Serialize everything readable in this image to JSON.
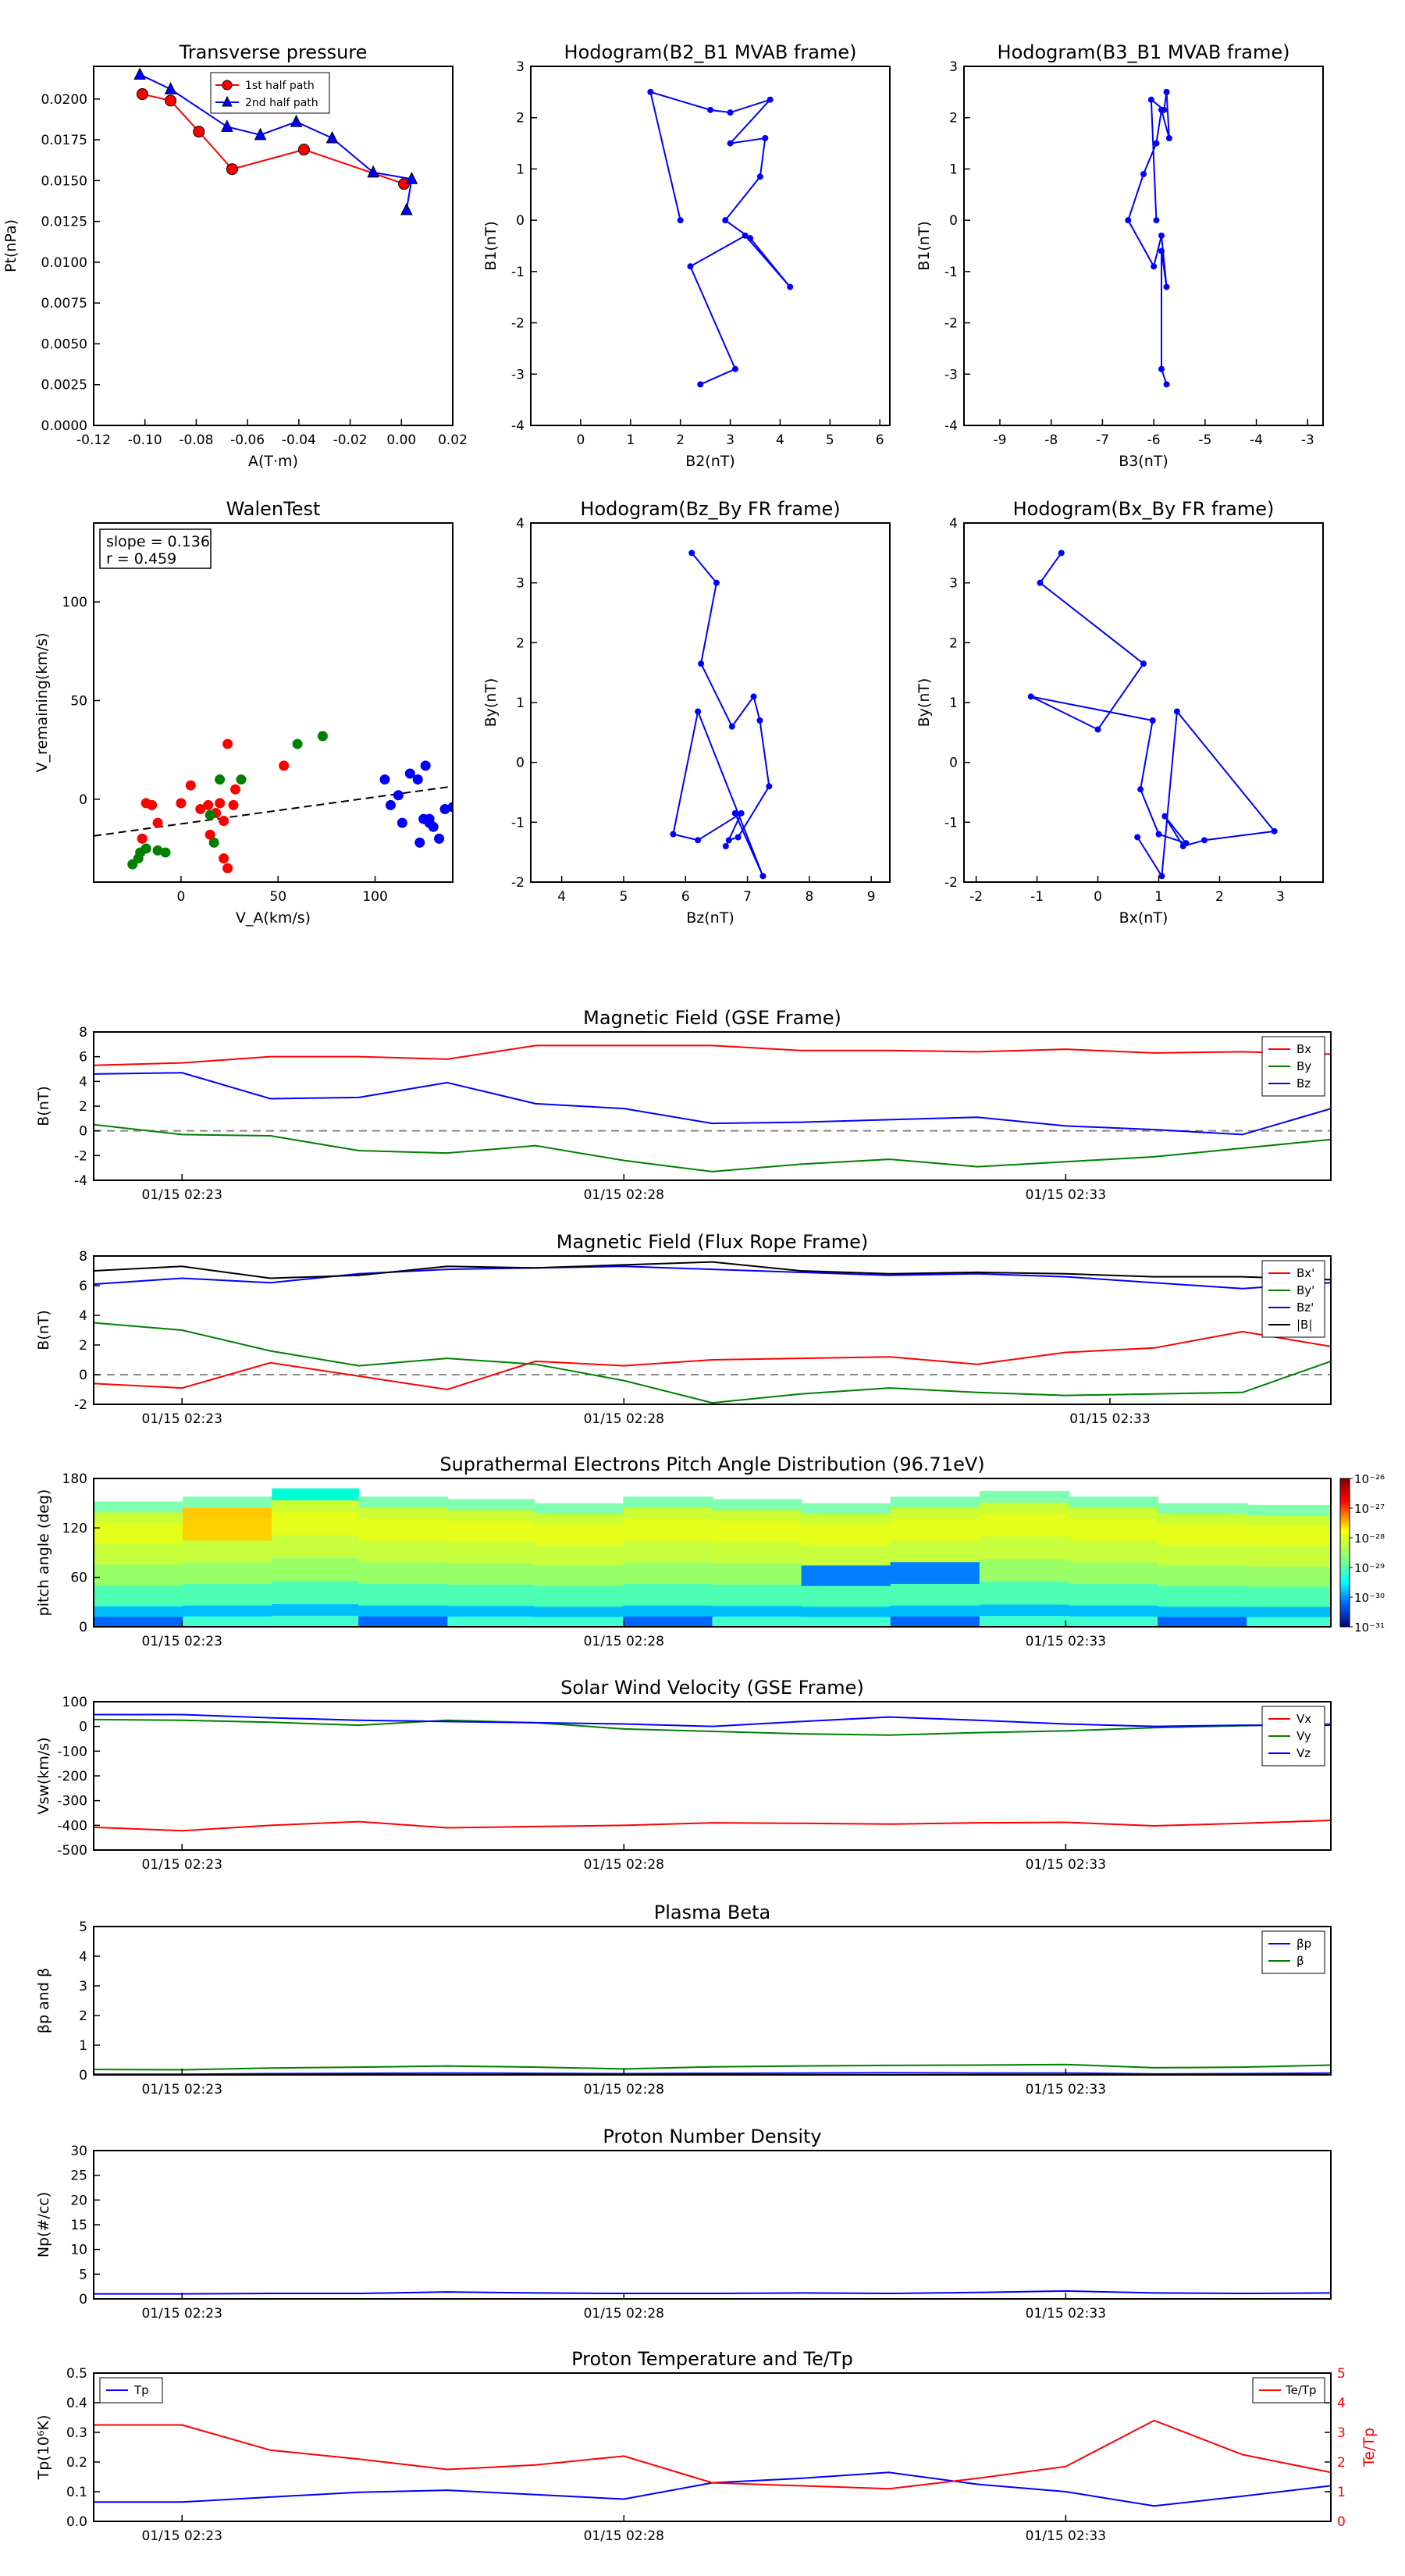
{
  "chart_data": [
    {
      "id": "tp",
      "type": "line",
      "title": "Transverse pressure",
      "xlabel": "A(T·m)",
      "ylabel": "Pt(nPa)",
      "xlim": [
        -0.12,
        0.02
      ],
      "ylim": [
        0.0,
        0.022
      ],
      "xticks": [
        "-0.12",
        "-0.10",
        "-0.08",
        "-0.06",
        "-0.04",
        "-0.02",
        "0.00",
        "0.02"
      ],
      "yticks": [
        "0.0000",
        "0.0025",
        "0.0050",
        "0.0075",
        "0.0100",
        "0.0125",
        "0.0150",
        "0.0175",
        "0.0200"
      ],
      "legend": "top-center",
      "series": [
        {
          "name": "1st half path",
          "marker": "circle",
          "color": "#ff0000",
          "x": [
            -0.101,
            -0.09,
            -0.079,
            -0.066,
            -0.038,
            0.001
          ],
          "y": [
            0.0203,
            0.0199,
            0.018,
            0.0157,
            0.0169,
            0.0148
          ]
        },
        {
          "name": "2nd half path",
          "marker": "triangle",
          "color": "#0000ff",
          "x": [
            -0.102,
            -0.09,
            -0.068,
            -0.055,
            -0.041,
            -0.027,
            -0.011,
            0.004,
            0.002
          ],
          "y": [
            0.0215,
            0.0206,
            0.0183,
            0.0178,
            0.0186,
            0.0176,
            0.0155,
            0.0151,
            0.0132
          ]
        }
      ]
    },
    {
      "id": "h1",
      "type": "line",
      "title": "Hodogram(B2_B1 MVAB frame)",
      "xlabel": "B2(nT)",
      "ylabel": "B1(nT)",
      "xlim": [
        -1,
        6.2
      ],
      "ylim": [
        -4,
        3
      ],
      "xticks": [
        "0",
        "1",
        "2",
        "3",
        "4",
        "5",
        "6"
      ],
      "yticks": [
        "-4",
        "-3",
        "-2",
        "-1",
        "0",
        "1",
        "2",
        "3"
      ],
      "series": [
        {
          "color": "#0000ff",
          "marker": "dot",
          "x": [
            2.0,
            1.4,
            2.6,
            3.0,
            3.8,
            3.0,
            3.7,
            3.6,
            2.9,
            3.4,
            4.2,
            3.3,
            2.2,
            3.1,
            2.4
          ],
          "y": [
            0.0,
            2.5,
            2.15,
            2.1,
            2.35,
            1.5,
            1.6,
            0.85,
            0.0,
            -0.35,
            -1.3,
            -0.3,
            -0.9,
            -2.9,
            -3.2
          ]
        }
      ]
    },
    {
      "id": "h2",
      "type": "line",
      "title": "Hodogram(B3_B1 MVAB frame)",
      "xlabel": "B3(nT)",
      "ylabel": "B1(nT)",
      "xlim": [
        -9.7,
        -2.7
      ],
      "ylim": [
        -4,
        3
      ],
      "xticks": [
        "-9",
        "-8",
        "-7",
        "-6",
        "-5",
        "-4",
        "-3"
      ],
      "yticks": [
        "-4",
        "-3",
        "-2",
        "-1",
        "0",
        "1",
        "2",
        "3"
      ],
      "series": [
        {
          "color": "#0000ff",
          "marker": "dot",
          "x": [
            -5.95,
            -6.05,
            -5.8,
            -5.75,
            -5.7,
            -5.85,
            -5.95,
            -6.2,
            -6.5,
            -6.0,
            -5.85,
            -5.75,
            -5.85,
            -5.85,
            -5.75
          ],
          "y": [
            0.0,
            2.35,
            2.15,
            2.5,
            1.6,
            2.15,
            1.5,
            0.9,
            0.0,
            -0.9,
            -0.3,
            -1.3,
            -0.6,
            -2.9,
            -3.2
          ]
        }
      ]
    },
    {
      "id": "wt",
      "type": "scatter",
      "title": "WalenTest",
      "xlabel": "V_A(km/s)",
      "ylabel": "V_remaining(km/s)",
      "xlim": [
        -45,
        140
      ],
      "ylim": [
        -42,
        140
      ],
      "xticks": [
        "0",
        "50",
        "100"
      ],
      "yticks": [
        "0",
        "50",
        "100"
      ],
      "annotation": [
        "slope = 0.136",
        "r = 0.459"
      ],
      "fit": {
        "slope": 0.136,
        "intercept": -12.5
      },
      "series": [
        {
          "color": "#ff0000",
          "x": [
            -20,
            -12,
            0,
            10,
            15,
            18,
            20,
            22,
            24,
            22,
            27,
            -15,
            14,
            28,
            5,
            24,
            -18,
            53
          ],
          "y": [
            -20,
            -12,
            -2,
            -5,
            -18,
            -7,
            -2,
            -11,
            28,
            -30,
            -3,
            -3,
            -3,
            5,
            7,
            -35,
            -2,
            17
          ]
        },
        {
          "color": "#008000",
          "x": [
            -25,
            -22,
            -21,
            -18,
            -12,
            -8,
            15,
            17,
            20,
            31,
            60,
            73
          ],
          "y": [
            -33,
            -30,
            -27,
            -25,
            -26,
            -27,
            -8,
            -22,
            10,
            10,
            28,
            32
          ]
        },
        {
          "color": "#0000ff",
          "x": [
            105,
            112,
            114,
            118,
            123,
            125,
            126,
            128,
            130,
            133,
            136,
            140,
            108,
            122,
            128
          ],
          "y": [
            10,
            2,
            -12,
            13,
            -22,
            -10,
            17,
            -10,
            -14,
            -20,
            -5,
            -4,
            -3,
            10,
            -12
          ]
        }
      ]
    },
    {
      "id": "h3",
      "type": "line",
      "title": "Hodogram(Bz_By FR frame)",
      "xlabel": "Bz(nT)",
      "ylabel": "By(nT)",
      "xlim": [
        3.5,
        9.3
      ],
      "ylim": [
        -2,
        4
      ],
      "xticks": [
        "4",
        "5",
        "6",
        "7",
        "8",
        "9"
      ],
      "yticks": [
        "-2",
        "-1",
        "0",
        "1",
        "2",
        "3",
        "4"
      ],
      "series": [
        {
          "color": "#0000ff",
          "marker": "dot",
          "x": [
            6.1,
            6.5,
            6.25,
            6.75,
            7.1,
            7.2,
            7.35,
            6.85,
            6.7,
            6.65,
            6.9,
            6.2,
            5.8,
            6.2,
            7.25,
            6.8
          ],
          "y": [
            3.5,
            3.0,
            1.65,
            0.6,
            1.1,
            0.7,
            -0.4,
            -1.25,
            -1.3,
            -1.4,
            -0.85,
            -1.3,
            -1.2,
            0.85,
            -1.9,
            -0.85
          ]
        }
      ]
    },
    {
      "id": "h4",
      "type": "line",
      "title": "Hodogram(Bx_By FR frame)",
      "xlabel": "Bx(nT)",
      "ylabel": "By(nT)",
      "xlim": [
        -2.2,
        3.7
      ],
      "ylim": [
        -2,
        4
      ],
      "xticks": [
        "-2",
        "-1",
        "0",
        "1",
        "2",
        "3"
      ],
      "yticks": [
        "-2",
        "-1",
        "0",
        "1",
        "2",
        "3",
        "4"
      ],
      "series": [
        {
          "color": "#0000ff",
          "marker": "dot",
          "x": [
            -0.6,
            -0.95,
            0.75,
            0.0,
            -1.1,
            0.9,
            0.7,
            1.0,
            1.45,
            1.1,
            1.4,
            1.75,
            2.9,
            1.3,
            1.05,
            0.65
          ],
          "y": [
            3.5,
            3.0,
            1.65,
            0.55,
            1.1,
            0.7,
            -0.45,
            -1.2,
            -1.35,
            -0.9,
            -1.4,
            -1.3,
            -1.15,
            0.85,
            -1.9,
            -1.25
          ]
        }
      ]
    },
    {
      "id": "mf_gse",
      "type": "line",
      "title": "Magnetic Field (GSE Frame)",
      "ylabel": "B(nT)",
      "ylim": [
        -4,
        8
      ],
      "yticks": [
        "-4",
        "-2",
        "0",
        "2",
        "4",
        "6",
        "8"
      ],
      "time_ticks": [
        "01/15 02:23",
        "01/15 02:28",
        "01/15 02:33"
      ],
      "time_tick_pos": [
        1,
        6,
        11
      ],
      "tmax": 14,
      "zero_line": true,
      "legend": "top-right",
      "x": [
        0,
        1,
        2,
        3,
        4,
        5,
        6,
        7,
        8,
        9,
        10,
        11,
        12,
        13,
        14
      ],
      "series": [
        {
          "name": "Bx",
          "color": "#ff0000",
          "values": [
            5.3,
            5.5,
            6.0,
            6.0,
            5.8,
            6.9,
            6.9,
            6.9,
            6.5,
            6.5,
            6.4,
            6.6,
            6.3,
            6.4,
            6.2
          ]
        },
        {
          "name": "By",
          "color": "#008000",
          "values": [
            0.5,
            -0.3,
            -0.4,
            -1.6,
            -1.8,
            -1.2,
            -2.4,
            -3.3,
            -2.7,
            -2.3,
            -2.9,
            -2.5,
            -2.1,
            -1.4,
            -0.7
          ]
        },
        {
          "name": "Bz",
          "color": "#0000ff",
          "values": [
            4.6,
            4.7,
            2.6,
            2.7,
            3.9,
            2.2,
            1.8,
            0.6,
            0.7,
            0.9,
            1.1,
            0.4,
            0.1,
            -0.3,
            1.8
          ]
        }
      ]
    },
    {
      "id": "mf_fr",
      "type": "line",
      "title": "Magnetic Field (Flux Rope Frame)",
      "ylabel": "B(nT)",
      "ylim": [
        -2,
        8
      ],
      "yticks": [
        "-2",
        "0",
        "2",
        "4",
        "6",
        "8"
      ],
      "time_ticks": [
        "01/15 02:23",
        "01/15 02:28",
        "01/15 02:33"
      ],
      "time_tick_pos": [
        1,
        6,
        11.5
      ],
      "tmax": 14,
      "zero_line": true,
      "legend": "top-right",
      "x": [
        0,
        1,
        2,
        3,
        4,
        5,
        6,
        7,
        8,
        9,
        10,
        11,
        12,
        13,
        14
      ],
      "series": [
        {
          "name": "Bx'",
          "color": "#ff0000",
          "values": [
            -0.6,
            -0.9,
            0.8,
            -0.1,
            -1.0,
            0.9,
            0.6,
            1.0,
            1.1,
            1.2,
            0.7,
            1.5,
            1.8,
            2.9,
            1.9
          ]
        },
        {
          "name": "By'",
          "color": "#008000",
          "values": [
            3.5,
            3.0,
            1.6,
            0.6,
            1.1,
            0.7,
            -0.4,
            -1.9,
            -1.3,
            -0.9,
            -1.2,
            -1.4,
            -1.3,
            -1.2,
            0.9
          ]
        },
        {
          "name": "Bz'",
          "color": "#0000ff",
          "values": [
            6.1,
            6.5,
            6.2,
            6.8,
            7.1,
            7.2,
            7.3,
            7.1,
            6.9,
            6.7,
            6.8,
            6.6,
            6.2,
            5.8,
            6.2
          ]
        },
        {
          "name": "|B|",
          "color": "#000000",
          "values": [
            7.0,
            7.3,
            6.5,
            6.7,
            7.3,
            7.2,
            7.4,
            7.6,
            7.0,
            6.8,
            6.9,
            6.8,
            6.6,
            6.6,
            6.4
          ]
        }
      ]
    },
    {
      "id": "pad",
      "type": "heatmap",
      "title": "Suprathermal Electrons Pitch Angle Distribution (96.71eV)",
      "ylabel": "pitch angle (deg)",
      "ylim": [
        0,
        180
      ],
      "yticks": [
        "0",
        "60",
        "120",
        "180"
      ],
      "time_ticks": [
        "01/15 02:23",
        "01/15 02:28",
        "01/15 02:33"
      ],
      "time_tick_pos": [
        1,
        6,
        11
      ],
      "tmax": 14,
      "colorbar": {
        "labels": [
          "10⁻²⁶",
          "10⁻²⁷",
          "10⁻²⁸",
          "10⁻²⁹",
          "10⁻³⁰",
          "10⁻³¹"
        ]
      }
    },
    {
      "id": "sw",
      "type": "line",
      "title": "Solar Wind Velocity (GSE Frame)",
      "ylabel": "Vsw(km/s)",
      "ylim": [
        -500,
        100
      ],
      "yticks": [
        "-500",
        "-400",
        "-300",
        "-200",
        "-100",
        "0",
        "100"
      ],
      "time_ticks": [
        "01/15 02:23",
        "01/15 02:28",
        "01/15 02:33"
      ],
      "time_tick_pos": [
        1,
        6,
        11
      ],
      "tmax": 14,
      "legend": "top-right",
      "x": [
        0,
        1,
        2,
        3,
        4,
        5,
        6,
        7,
        8,
        9,
        10,
        11,
        12,
        13,
        14
      ],
      "series": [
        {
          "name": "Vx",
          "color": "#ff0000",
          "values": [
            -408,
            -422,
            -400,
            -385,
            -410,
            -405,
            -400,
            -390,
            -392,
            -395,
            -390,
            -388,
            -402,
            -392,
            -380
          ]
        },
        {
          "name": "Vy",
          "color": "#008000",
          "values": [
            28,
            25,
            17,
            5,
            25,
            15,
            -10,
            -20,
            -30,
            -35,
            -25,
            -18,
            -5,
            3,
            10
          ]
        },
        {
          "name": "Vz",
          "color": "#0000ff",
          "values": [
            48,
            48,
            35,
            25,
            20,
            15,
            10,
            0,
            20,
            38,
            25,
            10,
            0,
            5,
            5
          ]
        }
      ]
    },
    {
      "id": "beta",
      "type": "line",
      "title": "Plasma Beta",
      "ylabel": "βp and β",
      "ylim": [
        0,
        5
      ],
      "yticks": [
        "0",
        "1",
        "2",
        "3",
        "4",
        "5"
      ],
      "time_ticks": [
        "01/15 02:23",
        "01/15 02:28",
        "01/15 02:33"
      ],
      "time_tick_pos": [
        1,
        6,
        11
      ],
      "tmax": 14,
      "legend": "top-right",
      "x": [
        0,
        1,
        2,
        3,
        4,
        5,
        6,
        7,
        8,
        9,
        10,
        11,
        12,
        13,
        14
      ],
      "series": [
        {
          "name": "βp",
          "color": "#0000ff",
          "values": [
            0.02,
            0.02,
            0.04,
            0.05,
            0.06,
            0.05,
            0.04,
            0.05,
            0.06,
            0.07,
            0.06,
            0.06,
            0.03,
            0.04,
            0.06
          ]
        },
        {
          "name": "β",
          "color": "#008000",
          "values": [
            0.18,
            0.17,
            0.23,
            0.26,
            0.3,
            0.26,
            0.2,
            0.27,
            0.3,
            0.32,
            0.33,
            0.35,
            0.24,
            0.26,
            0.33
          ]
        }
      ]
    },
    {
      "id": "np",
      "type": "line",
      "title": "Proton Number Density",
      "ylabel": "Np(#/cc)",
      "ylim": [
        0,
        30
      ],
      "yticks": [
        "0",
        "5",
        "10",
        "15",
        "20",
        "25",
        "30"
      ],
      "time_ticks": [
        "01/15 02:23",
        "01/15 02:28",
        "01/15 02:33"
      ],
      "time_tick_pos": [
        1,
        6,
        11
      ],
      "tmax": 14,
      "x": [
        0,
        1,
        2,
        3,
        4,
        5,
        6,
        7,
        8,
        9,
        10,
        11,
        12,
        13,
        14
      ],
      "series": [
        {
          "name": "Np",
          "color": "#0000ff",
          "values": [
            1.0,
            1.0,
            1.1,
            1.1,
            1.4,
            1.2,
            1.1,
            1.1,
            1.2,
            1.1,
            1.3,
            1.6,
            1.2,
            1.1,
            1.2
          ]
        }
      ]
    },
    {
      "id": "temp",
      "type": "line",
      "title": "Proton Temperature and Te/Tp",
      "ylabel": "Tp(10⁶K)",
      "y2label": "Te/Tp",
      "ylim": [
        0,
        0.5
      ],
      "y2lim": [
        0,
        5
      ],
      "yticks": [
        "0.0",
        "0.1",
        "0.2",
        "0.3",
        "0.4",
        "0.5"
      ],
      "y2ticks": [
        "0",
        "1",
        "2",
        "3",
        "4",
        "5"
      ],
      "time_ticks": [
        "01/15 02:23",
        "01/15 02:28",
        "01/15 02:33"
      ],
      "time_tick_pos": [
        1,
        6,
        11
      ],
      "tmax": 14,
      "x": [
        0,
        1,
        2,
        3,
        4,
        5,
        6,
        7,
        8,
        9,
        10,
        11,
        12,
        13,
        14
      ],
      "series": [
        {
          "name": "Tp",
          "color": "#0000ff",
          "axis": "left",
          "values": [
            0.065,
            0.065,
            0.082,
            0.098,
            0.105,
            0.09,
            0.075,
            0.13,
            0.145,
            0.165,
            0.125,
            0.1,
            0.052,
            0.085,
            0.12
          ]
        },
        {
          "name": "Te/Tp",
          "color": "#ff0000",
          "axis": "right",
          "values": [
            3.25,
            3.25,
            2.4,
            2.1,
            1.75,
            1.9,
            2.2,
            1.3,
            1.2,
            1.1,
            1.45,
            1.85,
            3.4,
            2.25,
            1.65
          ]
        }
      ]
    }
  ]
}
